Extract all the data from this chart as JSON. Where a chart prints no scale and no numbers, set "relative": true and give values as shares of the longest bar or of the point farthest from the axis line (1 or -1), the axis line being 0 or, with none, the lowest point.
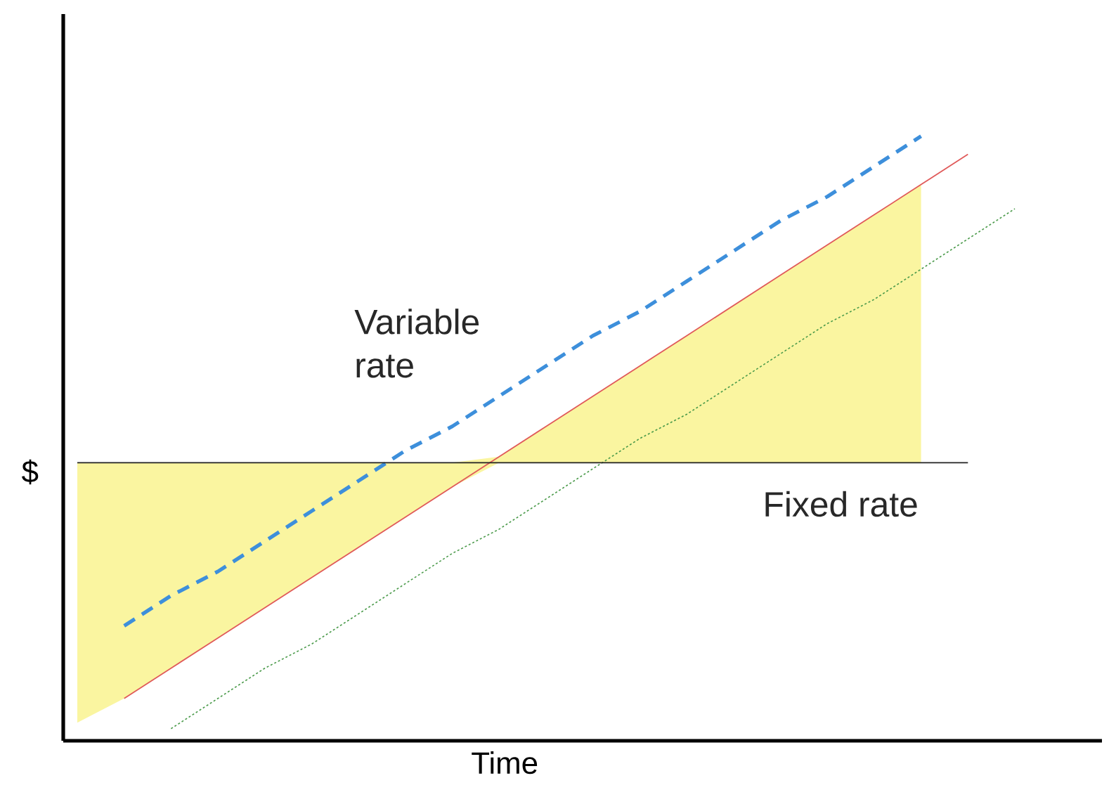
{
  "chart_data": {
    "type": "line",
    "relative": true,
    "xlabel": "Time",
    "ylabel": "$",
    "categories": [
      null,
      null,
      null,
      null,
      null,
      null,
      null,
      null,
      null,
      null,
      null,
      null,
      null,
      null,
      null,
      null,
      null,
      null,
      null,
      null,
      null
    ],
    "series": [
      {
        "name": "Variable rate",
        "color": "#3d8fdb",
        "line_style": "dashed",
        "values": [
          null,
          0.19,
          0.24,
          0.28,
          0.33,
          0.38,
          0.43,
          0.48,
          0.52,
          0.57,
          0.62,
          0.67,
          0.71,
          0.76,
          0.81,
          0.86,
          0.9,
          0.95,
          1.0,
          null,
          null
        ]
      },
      {
        "color": "#e05a5a",
        "line_style": "solid",
        "values": [
          null,
          0.07,
          0.12,
          0.17,
          0.22,
          0.27,
          0.32,
          0.37,
          0.42,
          0.47,
          0.52,
          0.57,
          0.62,
          0.67,
          0.72,
          0.77,
          0.82,
          0.87,
          0.92,
          0.97,
          null
        ],
        "lower": [
          0.03,
          0.07,
          0.12,
          0.17,
          0.22,
          0.27,
          0.32,
          0.37,
          0.42,
          0.46,
          0.46,
          0.46,
          0.46,
          0.46,
          0.46,
          0.46,
          0.46,
          0.46,
          0.46,
          null,
          null
        ],
        "upper": [
          0.46,
          0.46,
          0.46,
          0.46,
          0.46,
          0.46,
          0.46,
          0.46,
          0.46,
          0.47,
          0.52,
          0.57,
          0.62,
          0.67,
          0.72,
          0.77,
          0.82,
          0.87,
          0.92,
          null,
          null
        ]
      },
      {
        "color": "#4a9a4a",
        "line_style": "dotted",
        "values": [
          null,
          null,
          0.02,
          0.07,
          0.12,
          0.16,
          0.21,
          0.26,
          0.31,
          0.35,
          0.4,
          0.45,
          0.5,
          0.54,
          0.59,
          0.64,
          0.69,
          0.73,
          0.78,
          0.83,
          0.88
        ]
      },
      {
        "name": "Fixed rate",
        "color": "#222222",
        "line_style": "solid",
        "values": [
          0.46,
          0.46,
          0.46,
          0.46,
          0.46,
          0.46,
          0.46,
          0.46,
          0.46,
          0.46,
          0.46,
          0.46,
          0.46,
          0.46,
          0.46,
          0.46,
          0.46,
          0.46,
          0.46,
          0.46,
          null
        ]
      }
    ]
  }
}
